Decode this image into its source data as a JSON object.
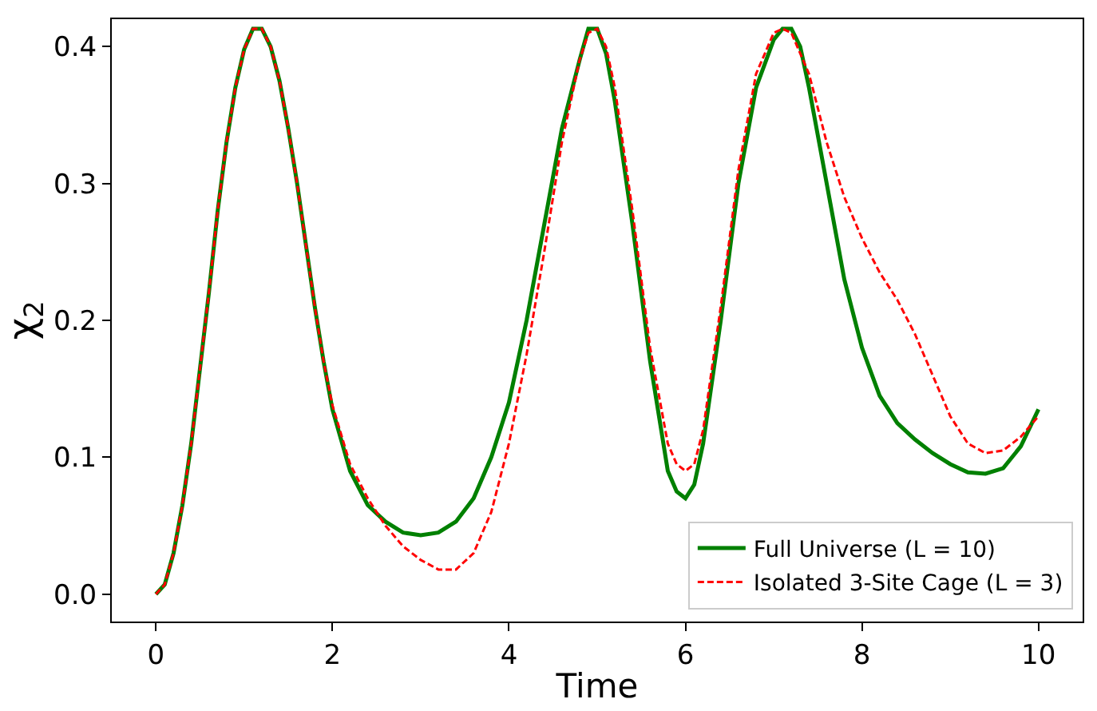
{
  "chart_data": {
    "type": "line",
    "xlabel": "Time",
    "ylabel": "χ$_{2}$",
    "xlim": [
      -0.5,
      10.5
    ],
    "ylim": [
      -0.02,
      0.42
    ],
    "xticks": [
      0,
      2,
      4,
      6,
      8,
      10
    ],
    "yticks": [
      {
        "value": 0,
        "label": "0.0"
      },
      0.1,
      0.2,
      0.3,
      0.4
    ],
    "legend": "bottom right",
    "series": [
      {
        "name": "Full Universe (L = 10)",
        "color": "#008000",
        "line_style": "solid",
        "x": [
          0,
          0.1,
          0.2,
          0.3,
          0.4,
          0.5,
          0.6,
          0.7,
          0.8,
          0.9,
          1.0,
          1.1,
          1.2,
          1.3,
          1.4,
          1.5,
          1.6,
          1.7,
          1.8,
          1.9,
          2.0,
          2.2,
          2.4,
          2.6,
          2.8,
          3.0,
          3.2,
          3.4,
          3.6,
          3.8,
          4.0,
          4.2,
          4.4,
          4.6,
          4.8,
          4.9,
          5.0,
          5.1,
          5.2,
          5.4,
          5.6,
          5.8,
          5.9,
          6.0,
          6.1,
          6.2,
          6.4,
          6.6,
          6.8,
          7.0,
          7.1,
          7.2,
          7.3,
          7.4,
          7.6,
          7.8,
          8.0,
          8.2,
          8.4,
          8.6,
          8.8,
          9.0,
          9.2,
          9.4,
          9.6,
          9.8,
          10.0
        ],
        "values": [
          0,
          0.007,
          0.03,
          0.065,
          0.11,
          0.165,
          0.22,
          0.28,
          0.33,
          0.37,
          0.398,
          0.413,
          0.413,
          0.4,
          0.375,
          0.34,
          0.3,
          0.255,
          0.21,
          0.17,
          0.135,
          0.09,
          0.065,
          0.053,
          0.045,
          0.043,
          0.045,
          0.053,
          0.07,
          0.1,
          0.14,
          0.2,
          0.27,
          0.34,
          0.39,
          0.413,
          0.413,
          0.395,
          0.36,
          0.27,
          0.17,
          0.09,
          0.075,
          0.07,
          0.08,
          0.11,
          0.2,
          0.3,
          0.37,
          0.405,
          0.413,
          0.413,
          0.4,
          0.37,
          0.3,
          0.23,
          0.18,
          0.145,
          0.125,
          0.113,
          0.103,
          0.095,
          0.089,
          0.088,
          0.092,
          0.108,
          0.135
        ]
      },
      {
        "name": "Isolated 3-Site Cage (L = 3)",
        "color": "#ff0000",
        "line_style": "dashed",
        "x": [
          0,
          0.1,
          0.2,
          0.3,
          0.4,
          0.5,
          0.6,
          0.7,
          0.8,
          0.9,
          1.0,
          1.1,
          1.2,
          1.3,
          1.4,
          1.5,
          1.6,
          1.7,
          1.8,
          1.9,
          2.0,
          2.2,
          2.4,
          2.6,
          2.8,
          3.0,
          3.2,
          3.4,
          3.6,
          3.8,
          4.0,
          4.2,
          4.4,
          4.6,
          4.8,
          4.9,
          5.0,
          5.1,
          5.2,
          5.4,
          5.6,
          5.8,
          5.9,
          6.0,
          6.1,
          6.2,
          6.4,
          6.6,
          6.8,
          7.0,
          7.1,
          7.2,
          7.4,
          7.6,
          7.8,
          8.0,
          8.2,
          8.4,
          8.6,
          8.8,
          9.0,
          9.2,
          9.4,
          9.6,
          9.8,
          10.0
        ],
        "values": [
          0,
          0.007,
          0.03,
          0.065,
          0.11,
          0.165,
          0.22,
          0.28,
          0.33,
          0.37,
          0.398,
          0.413,
          0.413,
          0.4,
          0.375,
          0.34,
          0.3,
          0.255,
          0.21,
          0.17,
          0.138,
          0.095,
          0.07,
          0.05,
          0.035,
          0.025,
          0.018,
          0.018,
          0.03,
          0.06,
          0.11,
          0.175,
          0.25,
          0.33,
          0.39,
          0.41,
          0.413,
          0.4,
          0.37,
          0.28,
          0.18,
          0.11,
          0.095,
          0.09,
          0.095,
          0.12,
          0.21,
          0.31,
          0.38,
          0.41,
          0.413,
          0.41,
          0.38,
          0.33,
          0.29,
          0.26,
          0.235,
          0.215,
          0.19,
          0.16,
          0.13,
          0.11,
          0.103,
          0.105,
          0.115,
          0.13
        ]
      }
    ]
  }
}
